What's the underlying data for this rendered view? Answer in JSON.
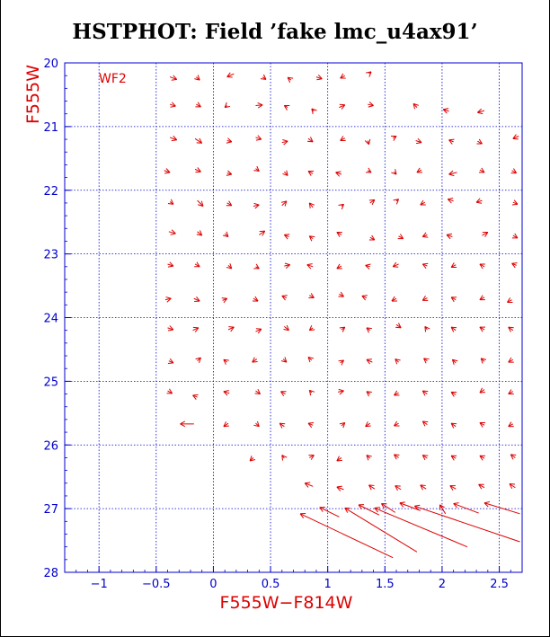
{
  "title": "HSTPHOT: Field ’fake lmc_u4ax91’",
  "chart_data": {
    "type": "vector-field",
    "title": "HSTPHOT: Field ’fake lmc_u4ax91’",
    "xlabel": "F555W−F814W",
    "ylabel": "F555W",
    "xlim": [
      -1.3,
      2.7
    ],
    "ylim": [
      28,
      20
    ],
    "y_inverted": true,
    "grid": true,
    "panel_label": "WF2",
    "xticks": [
      -1,
      -0.5,
      0,
      0.5,
      1,
      1.5,
      2,
      2.5
    ],
    "xtick_labels": [
      "−1",
      "−0.5",
      "0",
      "0.5",
      "1",
      "1.5",
      "2",
      "2.5"
    ],
    "yticks": [
      20,
      21,
      22,
      23,
      24,
      25,
      26,
      27,
      28
    ],
    "ytick_labels": [
      "20",
      "21",
      "22",
      "23",
      "24",
      "25",
      "26",
      "27",
      "28"
    ],
    "arrows": [
      [
        -0.38,
        20.22,
        -0.32,
        20.26
      ],
      [
        -0.15,
        20.22,
        -0.12,
        20.27
      ],
      [
        0.18,
        20.17,
        0.12,
        20.22
      ],
      [
        0.43,
        20.22,
        0.46,
        20.26
      ],
      [
        0.68,
        20.27,
        0.65,
        20.23
      ],
      [
        0.9,
        20.22,
        0.95,
        20.25
      ],
      [
        1.15,
        20.2,
        1.11,
        20.24
      ],
      [
        1.36,
        20.17,
        1.38,
        20.14
      ],
      [
        -0.38,
        20.65,
        -0.33,
        20.68
      ],
      [
        -0.15,
        20.65,
        -0.11,
        20.69
      ],
      [
        0.12,
        20.67,
        0.1,
        20.7
      ],
      [
        0.37,
        20.67,
        0.43,
        20.66
      ],
      [
        0.65,
        20.7,
        0.62,
        20.67
      ],
      [
        0.88,
        20.76,
        0.86,
        20.72
      ],
      [
        1.1,
        20.7,
        1.15,
        20.66
      ],
      [
        1.35,
        20.65,
        1.4,
        20.67
      ],
      [
        1.78,
        20.7,
        1.75,
        20.64
      ],
      [
        2.06,
        20.76,
        2.01,
        20.73
      ],
      [
        2.37,
        20.75,
        2.31,
        20.78
      ],
      [
        -0.38,
        21.17,
        -0.32,
        21.21
      ],
      [
        -0.16,
        21.19,
        -0.1,
        21.26
      ],
      [
        0.12,
        21.22,
        0.16,
        21.24
      ],
      [
        0.37,
        21.17,
        0.42,
        21.2
      ],
      [
        0.6,
        21.25,
        0.65,
        21.23
      ],
      [
        0.83,
        21.19,
        0.87,
        21.24
      ],
      [
        1.15,
        21.18,
        1.11,
        21.22
      ],
      [
        1.35,
        21.22,
        1.36,
        21.28
      ],
      [
        1.57,
        21.18,
        1.6,
        21.15
      ],
      [
        1.77,
        21.22,
        1.82,
        21.25
      ],
      [
        2.1,
        21.24,
        2.06,
        21.21
      ],
      [
        2.31,
        21.23,
        2.35,
        21.27
      ],
      [
        2.67,
        21.15,
        2.62,
        21.19
      ],
      [
        -0.43,
        21.69,
        -0.38,
        21.72
      ],
      [
        -0.16,
        21.67,
        -0.11,
        21.71
      ],
      [
        0.12,
        21.73,
        0.16,
        21.75
      ],
      [
        0.37,
        21.66,
        0.4,
        21.7
      ],
      [
        0.62,
        21.71,
        0.65,
        21.77
      ],
      [
        0.87,
        21.74,
        0.83,
        21.7
      ],
      [
        1.12,
        21.75,
        1.07,
        21.72
      ],
      [
        1.35,
        21.69,
        1.38,
        21.72
      ],
      [
        1.58,
        21.71,
        1.6,
        21.75
      ],
      [
        1.82,
        21.68,
        1.78,
        21.72
      ],
      [
        2.13,
        21.72,
        2.06,
        21.75
      ],
      [
        2.33,
        21.68,
        2.37,
        21.72
      ],
      [
        2.61,
        21.69,
        2.65,
        21.73
      ],
      [
        -0.38,
        22.18,
        -0.35,
        22.22
      ],
      [
        -0.14,
        22.16,
        -0.09,
        22.25
      ],
      [
        0.12,
        22.2,
        0.16,
        22.24
      ],
      [
        0.35,
        22.25,
        0.4,
        22.23
      ],
      [
        0.6,
        22.24,
        0.64,
        22.17
      ],
      [
        0.87,
        22.27,
        0.84,
        22.2
      ],
      [
        1.12,
        22.25,
        1.14,
        22.22
      ],
      [
        1.37,
        22.2,
        1.41,
        22.15
      ],
      [
        1.6,
        22.17,
        1.62,
        22.14
      ],
      [
        1.85,
        22.19,
        1.81,
        22.23
      ],
      [
        2.1,
        22.17,
        2.05,
        22.14
      ],
      [
        2.35,
        22.16,
        2.3,
        22.19
      ],
      [
        2.62,
        22.19,
        2.66,
        22.22
      ],
      [
        -0.39,
        22.65,
        -0.33,
        22.68
      ],
      [
        -0.14,
        22.65,
        -0.1,
        22.71
      ],
      [
        0.1,
        22.68,
        0.13,
        22.73
      ],
      [
        0.4,
        22.7,
        0.45,
        22.64
      ],
      [
        0.66,
        22.73,
        0.62,
        22.7
      ],
      [
        0.87,
        22.76,
        0.84,
        22.72
      ],
      [
        1.12,
        22.7,
        1.08,
        22.66
      ],
      [
        1.37,
        22.74,
        1.41,
        22.78
      ],
      [
        1.62,
        22.72,
        1.66,
        22.76
      ],
      [
        1.87,
        22.7,
        1.83,
        22.73
      ],
      [
        2.09,
        22.73,
        2.04,
        22.7
      ],
      [
        2.35,
        22.71,
        2.4,
        22.66
      ],
      [
        2.62,
        22.71,
        2.66,
        22.75
      ],
      [
        -0.4,
        23.16,
        -0.35,
        23.19
      ],
      [
        -0.16,
        23.16,
        -0.12,
        23.2
      ],
      [
        0.13,
        23.18,
        0.16,
        23.23
      ],
      [
        0.37,
        23.2,
        0.4,
        23.23
      ],
      [
        0.62,
        23.19,
        0.67,
        23.17
      ],
      [
        0.87,
        23.2,
        0.82,
        23.17
      ],
      [
        1.12,
        23.19,
        1.08,
        23.23
      ],
      [
        1.37,
        23.2,
        1.33,
        23.18
      ],
      [
        1.62,
        23.16,
        1.57,
        23.2
      ],
      [
        1.87,
        23.19,
        1.83,
        23.16
      ],
      [
        2.12,
        23.17,
        2.08,
        23.21
      ],
      [
        2.37,
        23.2,
        2.33,
        23.16
      ],
      [
        2.65,
        23.18,
        2.61,
        23.15
      ],
      [
        -0.42,
        23.72,
        -0.37,
        23.7
      ],
      [
        -0.17,
        23.7,
        -0.12,
        23.74
      ],
      [
        0.08,
        23.73,
        0.12,
        23.7
      ],
      [
        0.35,
        23.7,
        0.39,
        23.74
      ],
      [
        0.64,
        23.69,
        0.6,
        23.66
      ],
      [
        0.84,
        23.65,
        0.88,
        23.69
      ],
      [
        1.1,
        23.63,
        1.14,
        23.67
      ],
      [
        1.34,
        23.69,
        1.3,
        23.66
      ],
      [
        1.6,
        23.7,
        1.56,
        23.74
      ],
      [
        1.87,
        23.69,
        1.83,
        23.73
      ],
      [
        2.12,
        23.72,
        2.08,
        23.68
      ],
      [
        2.37,
        23.68,
        2.33,
        23.72
      ],
      [
        2.61,
        23.72,
        2.57,
        23.76
      ],
      [
        -0.4,
        24.16,
        -0.35,
        24.19
      ],
      [
        -0.18,
        24.2,
        -0.13,
        24.16
      ],
      [
        0.13,
        24.19,
        0.18,
        24.15
      ],
      [
        0.37,
        24.22,
        0.42,
        24.18
      ],
      [
        0.62,
        24.14,
        0.66,
        24.2
      ],
      [
        0.87,
        24.16,
        0.84,
        24.2
      ],
      [
        1.12,
        24.19,
        1.15,
        24.15
      ],
      [
        1.37,
        24.2,
        1.34,
        24.16
      ],
      [
        1.6,
        24.11,
        1.64,
        24.16
      ],
      [
        1.87,
        24.19,
        1.85,
        24.14
      ],
      [
        2.12,
        24.2,
        2.08,
        24.15
      ],
      [
        2.37,
        24.19,
        2.33,
        24.15
      ],
      [
        2.62,
        24.2,
        2.58,
        24.15
      ],
      [
        -0.39,
        24.68,
        -0.35,
        24.71
      ],
      [
        -0.14,
        24.68,
        -0.11,
        24.63
      ],
      [
        0.12,
        24.7,
        0.09,
        24.66
      ],
      [
        0.38,
        24.65,
        0.34,
        24.7
      ],
      [
        0.61,
        24.65,
        0.64,
        24.7
      ],
      [
        0.86,
        24.67,
        0.83,
        24.62
      ],
      [
        1.11,
        24.71,
        1.14,
        24.67
      ],
      [
        1.39,
        24.7,
        1.34,
        24.66
      ],
      [
        1.62,
        24.7,
        1.59,
        24.65
      ],
      [
        1.87,
        24.68,
        1.84,
        24.64
      ],
      [
        2.12,
        24.71,
        2.09,
        24.66
      ],
      [
        2.37,
        24.69,
        2.34,
        24.64
      ],
      [
        2.62,
        24.66,
        2.58,
        24.7
      ],
      [
        -0.4,
        25.15,
        -0.36,
        25.19
      ],
      [
        -0.14,
        25.25,
        -0.18,
        25.22
      ],
      [
        0.14,
        25.19,
        0.09,
        25.16
      ],
      [
        0.37,
        25.15,
        0.41,
        25.2
      ],
      [
        0.63,
        25.2,
        0.59,
        25.16
      ],
      [
        0.86,
        25.18,
        0.84,
        25.14
      ],
      [
        1.09,
        25.17,
        1.14,
        25.15
      ],
      [
        1.37,
        25.2,
        1.34,
        25.16
      ],
      [
        1.62,
        25.18,
        1.58,
        25.22
      ],
      [
        1.87,
        25.2,
        1.83,
        25.15
      ],
      [
        2.12,
        25.21,
        2.08,
        25.17
      ],
      [
        2.37,
        25.13,
        2.33,
        25.18
      ],
      [
        2.62,
        25.16,
        2.58,
        25.2
      ],
      [
        -0.17,
        25.67,
        -0.29,
        25.67
      ],
      [
        0.13,
        25.66,
        0.09,
        25.71
      ],
      [
        0.37,
        25.66,
        0.4,
        25.71
      ],
      [
        0.62,
        25.71,
        0.58,
        25.66
      ],
      [
        0.87,
        25.69,
        0.83,
        25.66
      ],
      [
        1.12,
        25.7,
        1.15,
        25.65
      ],
      [
        1.37,
        25.66,
        1.33,
        25.71
      ],
      [
        1.62,
        25.66,
        1.58,
        25.7
      ],
      [
        1.87,
        25.68,
        1.83,
        25.63
      ],
      [
        2.12,
        25.71,
        2.08,
        25.66
      ],
      [
        2.37,
        25.69,
        2.33,
        25.65
      ],
      [
        2.62,
        25.67,
        2.58,
        25.71
      ],
      [
        0.35,
        26.2,
        0.32,
        26.25
      ],
      [
        0.62,
        26.21,
        0.6,
        26.16
      ],
      [
        0.84,
        26.2,
        0.88,
        26.16
      ],
      [
        1.12,
        26.2,
        1.08,
        26.25
      ],
      [
        1.37,
        26.21,
        1.34,
        26.16
      ],
      [
        1.62,
        26.2,
        1.58,
        26.15
      ],
      [
        1.87,
        26.21,
        1.83,
        26.16
      ],
      [
        2.12,
        26.21,
        2.08,
        26.17
      ],
      [
        2.37,
        26.21,
        2.33,
        26.17
      ],
      [
        2.64,
        26.2,
        2.6,
        26.15
      ],
      [
        0.87,
        26.65,
        0.8,
        26.6
      ],
      [
        1.14,
        26.7,
        1.08,
        26.66
      ],
      [
        1.41,
        26.69,
        1.36,
        26.63
      ],
      [
        1.64,
        26.7,
        1.59,
        26.64
      ],
      [
        1.86,
        26.69,
        1.81,
        26.63
      ],
      [
        2.12,
        26.69,
        2.07,
        26.64
      ],
      [
        2.37,
        26.67,
        2.32,
        26.62
      ],
      [
        2.64,
        26.67,
        2.59,
        26.61
      ],
      [
        1.57,
        27.77,
        0.76,
        27.08
      ],
      [
        1.78,
        27.68,
        1.15,
        26.99
      ],
      [
        2.22,
        27.6,
        1.41,
        26.99
      ],
      [
        2.68,
        27.52,
        1.76,
        26.96
      ],
      [
        1.1,
        27.13,
        0.93,
        26.98
      ],
      [
        1.59,
        27.06,
        1.47,
        26.92
      ],
      [
        2.03,
        27.08,
        1.98,
        26.94
      ],
      [
        2.68,
        27.08,
        2.37,
        26.91
      ],
      [
        1.81,
        27.03,
        1.63,
        26.91
      ],
      [
        2.32,
        27.07,
        2.1,
        26.92
      ],
      [
        1.45,
        27.1,
        1.27,
        26.94
      ]
    ]
  }
}
